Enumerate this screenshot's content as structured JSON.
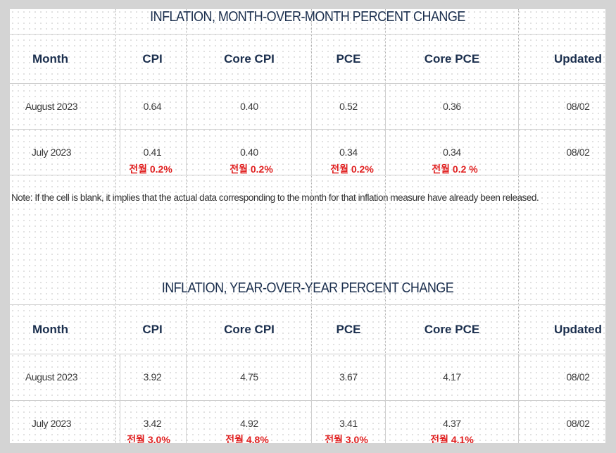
{
  "mom": {
    "title": "INFLATION, MONTH-OVER-MONTH PERCENT CHANGE",
    "headers": [
      "Month",
      "CPI",
      "Core CPI",
      "PCE",
      "Core PCE",
      "Updated"
    ],
    "rows": [
      {
        "month": "August 2023",
        "cpi": "0.64",
        "core_cpi": "0.40",
        "pce": "0.52",
        "core_pce": "0.36",
        "updated": "08/02"
      },
      {
        "month": "July 2023",
        "cpi": "0.41",
        "core_cpi": "0.40",
        "pce": "0.34",
        "core_pce": "0.34",
        "updated": "08/02"
      }
    ],
    "prev": [
      "전월 0.2%",
      "전월 0.2%",
      "전월 0.2%",
      "전월 0.2 %"
    ]
  },
  "note": "Note: If the cell is blank, it implies that the actual data corresponding to the month for that inflation measure have already been released.",
  "yoy": {
    "title": "INFLATION, YEAR-OVER-YEAR PERCENT CHANGE",
    "headers": [
      "Month",
      "CPI",
      "Core CPI",
      "PCE",
      "Core PCE",
      "Updated"
    ],
    "rows": [
      {
        "month": "August 2023",
        "cpi": "3.92",
        "core_cpi": "4.75",
        "pce": "3.67",
        "core_pce": "4.17",
        "updated": "08/02"
      },
      {
        "month": "July 2023",
        "cpi": "3.42",
        "core_cpi": "4.92",
        "pce": "3.41",
        "core_pce": "4.37",
        "updated": "08/02"
      }
    ],
    "prev": [
      "전월 3.0%",
      "전월 4.8%",
      "전월 3.0%",
      "전월 4.1%"
    ]
  },
  "colors": {
    "header": "#1b2f4e",
    "annotation": "#e02020"
  }
}
